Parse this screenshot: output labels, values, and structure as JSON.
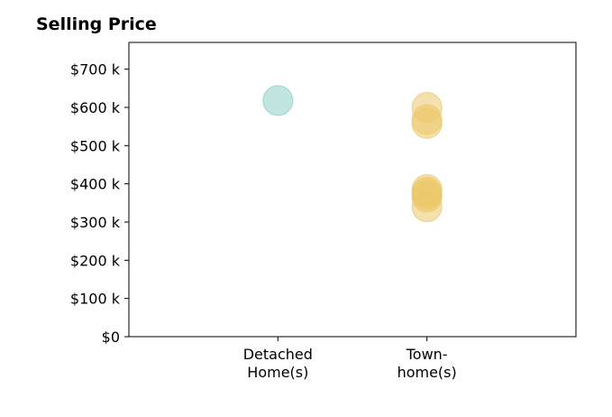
{
  "chart_data": {
    "type": "scatter",
    "title": "Selling Price",
    "xlabel": "",
    "ylabel": "",
    "categories": [
      {
        "lines": [
          "Detached",
          "Home(s)"
        ]
      },
      {
        "lines": [
          "Town-",
          "home(s)"
        ]
      }
    ],
    "y_ticks": [
      "$0",
      "$100 k",
      "$200 k",
      "$300 k",
      "$400 k",
      "$500 k",
      "$600 k",
      "$700 k"
    ],
    "y_tick_values": [
      0,
      100,
      200,
      300,
      400,
      500,
      600,
      700
    ],
    "ylim": [
      0,
      770
    ],
    "xlim": [
      0,
      3
    ],
    "grid": false,
    "series": [
      {
        "category_index": 0,
        "color": "#8ecfc9",
        "values": [
          618
        ]
      },
      {
        "category_index": 1,
        "color": "#ebc86a",
        "values": [
          600,
          568,
          558,
          385,
          378,
          372,
          365,
          340
        ]
      }
    ]
  }
}
